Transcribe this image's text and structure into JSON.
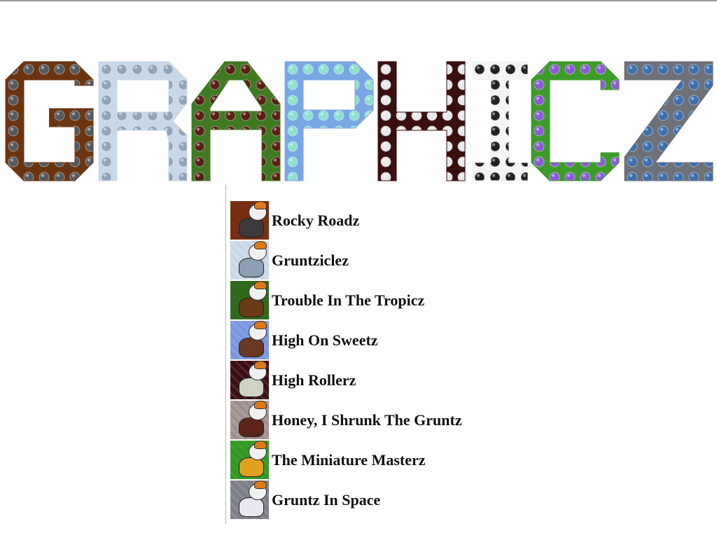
{
  "banner": {
    "title": "GRAPHICZ",
    "letters": [
      {
        "char": "G",
        "fill": "#6b3511",
        "tile": "#555a5e",
        "icon": "rock-tile-icon"
      },
      {
        "char": "R",
        "fill": "#c8d8e8",
        "tile": "#8fa4b8",
        "icon": "snow-tile-icon"
      },
      {
        "char": "A",
        "fill": "#3f7a22",
        "tile": "#5a1f14",
        "icon": "coconut-tile-icon"
      },
      {
        "char": "P",
        "fill": "#7aa6e4",
        "tile": "#8fe0d0",
        "icon": "cupcake-tile-icon"
      },
      {
        "char": "H",
        "fill": "#3a0f10",
        "tile": "#e8e8e8",
        "icon": "dice-tile-icon"
      },
      {
        "char": "I",
        "fill": "#f4f4f4",
        "tile": "#222222",
        "icon": "domino-tile-icon"
      },
      {
        "char": "C",
        "fill": "#3d9b2a",
        "tile": "#8a5ad8",
        "icon": "mushroom-tile-icon"
      },
      {
        "char": "Z",
        "fill": "#6c7078",
        "tile": "#3b6fae",
        "icon": "space-tile-icon"
      }
    ]
  },
  "levels": [
    {
      "label": "Rocky Roadz",
      "bg": "#7a2e10",
      "accent": "#3b3b3b",
      "icon": "rocky-roadz-thumbnail-icon"
    },
    {
      "label": "Gruntziclez",
      "bg": "#cfdcea",
      "accent": "#8c9fb3",
      "icon": "gruntziclez-thumbnail-icon"
    },
    {
      "label": "Trouble In The Tropicz",
      "bg": "#2f6b1e",
      "accent": "#6b3a18",
      "icon": "tropicz-thumbnail-icon"
    },
    {
      "label": "High On Sweetz",
      "bg": "#7f9fe8",
      "accent": "#6a3a24",
      "icon": "sweetz-thumbnail-icon"
    },
    {
      "label": "High Rollerz",
      "bg": "#3a0e14",
      "accent": "#cfd2c4",
      "icon": "rollerz-thumbnail-icon"
    },
    {
      "label": "Honey, I Shrunk The Gruntz",
      "bg": "#a79a9a",
      "accent": "#5a2418",
      "icon": "shrunk-thumbnail-icon"
    },
    {
      "label": "The Miniature Masterz",
      "bg": "#2f9a2a",
      "accent": "#e0a020",
      "icon": "masterz-thumbnail-icon"
    },
    {
      "label": "Gruntz In Space",
      "bg": "#7d8088",
      "accent": "#e8e8f0",
      "icon": "space-thumbnail-icon"
    }
  ]
}
